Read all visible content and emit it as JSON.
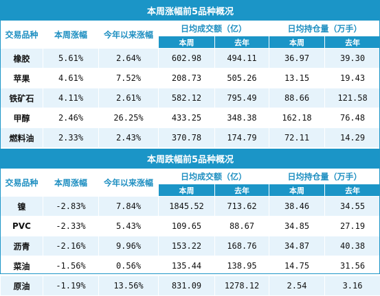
{
  "colors": {
    "header": "#1b95c7",
    "header_text": "#ffffff",
    "subheader_text": "#1f8fc1",
    "stripe": "#e6f3fb"
  },
  "top": {
    "title": "本周涨幅前5品种概况",
    "headers": {
      "variety": "交易品种",
      "week_change": "本周涨幅",
      "ytd_change": "今年以来涨幅",
      "volume_group": "日均成交额（亿）",
      "position_group": "日均持仓量（万手）",
      "this_week": "本周",
      "last_year": "去年",
      "this_week2": "本周",
      "last_year2": "去年"
    },
    "rows": [
      {
        "name": "橡胶",
        "week": "5.61%",
        "ytd": "2.64%",
        "vol_week": "602.98",
        "vol_last": "494.11",
        "pos_week": "36.97",
        "pos_last": "39.30"
      },
      {
        "name": "苹果",
        "week": "4.61%",
        "ytd": "7.52%",
        "vol_week": "208.73",
        "vol_last": "505.26",
        "pos_week": "13.15",
        "pos_last": "19.43"
      },
      {
        "name": "铁矿石",
        "week": "4.11%",
        "ytd": "2.61%",
        "vol_week": "582.12",
        "vol_last": "795.49",
        "pos_week": "88.66",
        "pos_last": "121.58"
      },
      {
        "name": "甲醇",
        "week": "2.46%",
        "ytd": "26.25%",
        "vol_week": "433.25",
        "vol_last": "348.38",
        "pos_week": "162.18",
        "pos_last": "76.48"
      },
      {
        "name": "燃料油",
        "week": "2.33%",
        "ytd": "2.43%",
        "vol_week": "370.78",
        "vol_last": "174.79",
        "pos_week": "72.11",
        "pos_last": "14.29"
      }
    ]
  },
  "bottom": {
    "title": "本周跌幅前5品种概况",
    "headers": {
      "variety": "交易品种",
      "week_change": "本周涨幅",
      "ytd_change": "今年以来涨幅",
      "volume_group": "日均成交额（亿）",
      "position_group": "日均持仓量（万手）",
      "this_week": "本周",
      "last_year": "去年",
      "this_week2": "本周",
      "last_year2": "去年"
    },
    "rows": [
      {
        "name": "镍",
        "week": "-2.83%",
        "ytd": "7.84%",
        "vol_week": "1845.52",
        "vol_last": "713.62",
        "pos_week": "38.46",
        "pos_last": "34.55"
      },
      {
        "name": "PVC",
        "week": "-2.33%",
        "ytd": "5.43%",
        "vol_week": "109.65",
        "vol_last": "88.67",
        "pos_week": "34.85",
        "pos_last": "27.19"
      },
      {
        "name": "沥青",
        "week": "-2.16%",
        "ytd": "9.96%",
        "vol_week": "153.22",
        "vol_last": "168.76",
        "pos_week": "34.87",
        "pos_last": "40.38"
      },
      {
        "name": "菜油",
        "week": "-1.56%",
        "ytd": "0.56%",
        "vol_week": "135.44",
        "vol_last": "138.95",
        "pos_week": "14.75",
        "pos_last": "31.56"
      },
      {
        "name": "原油",
        "week": "-1.19%",
        "ytd": "13.56%",
        "vol_week": "831.09",
        "vol_last": "1278.12",
        "pos_week": "2.54",
        "pos_last": "3.16"
      }
    ]
  }
}
